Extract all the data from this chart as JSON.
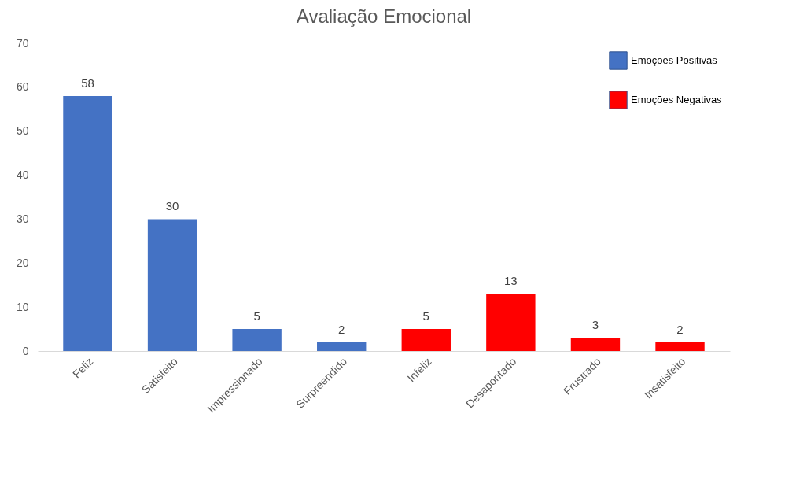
{
  "chart_data": {
    "type": "bar",
    "title": "Avaliação Emocional",
    "categories": [
      "Feliz",
      "Satisfeito",
      "Impressionado",
      "Surpreendido",
      "Infeliz",
      "Desapontado",
      "Frustrado",
      "Insatisfeito"
    ],
    "series": [
      {
        "name": "Emoções Positivas",
        "color": "#4472c4",
        "values": [
          58,
          30,
          5,
          2,
          null,
          null,
          null,
          null
        ]
      },
      {
        "name": "Emoções Negativas",
        "color": "#ff0000",
        "values": [
          null,
          null,
          null,
          null,
          5,
          13,
          3,
          2
        ]
      }
    ],
    "ylim": [
      0,
      70
    ],
    "yticks": [
      0,
      10,
      20,
      30,
      40,
      50,
      60,
      70
    ],
    "legend": "top right",
    "data_labels": true
  }
}
